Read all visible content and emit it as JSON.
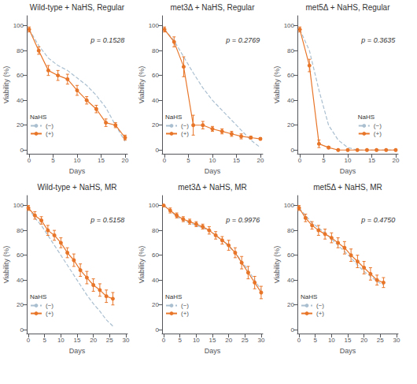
{
  "chart_data": [
    {
      "type": "line",
      "title": "Wild-type + NaHS, Regular",
      "xlabel": "Days",
      "ylabel": "Viability (%)",
      "x": [
        0,
        2,
        4,
        6,
        8,
        10,
        12,
        14,
        16,
        18,
        20
      ],
      "xlim": [
        -0.5,
        20.5
      ],
      "xticks": [
        0,
        5,
        10,
        15,
        20
      ],
      "ylim": [
        -3,
        108
      ],
      "yticks": [
        0,
        20,
        40,
        60,
        80,
        100
      ],
      "series": [
        {
          "name": "(−)",
          "color": "#AABFD0",
          "line_style": "dashed",
          "marker": "none",
          "values": [
            97,
            84,
            74,
            68,
            64,
            58,
            52,
            44,
            34,
            20,
            7
          ]
        },
        {
          "name": "(+)",
          "color": "#E8762A",
          "line_style": "solid",
          "marker": "circle",
          "values": [
            97,
            80,
            64,
            60,
            57,
            48,
            40,
            33,
            22,
            20,
            10
          ],
          "error": [
            2,
            3,
            4,
            4,
            4,
            4,
            3,
            3,
            3,
            2,
            2
          ]
        }
      ],
      "annotations": [
        "p = 0.1528"
      ],
      "legend": "lower left",
      "legend_title": "NaHS",
      "grid": false
    },
    {
      "type": "line",
      "title": "met3Δ + NaHS, Regular",
      "xlabel": "Days",
      "ylabel": "Viability (%)",
      "x": [
        0,
        2,
        4,
        6,
        8,
        10,
        12,
        14,
        16,
        18,
        20
      ],
      "xlim": [
        -0.5,
        20.5
      ],
      "xticks": [
        0,
        5,
        10,
        15,
        20
      ],
      "ylim": [
        -3,
        108
      ],
      "yticks": [
        0,
        20,
        40,
        60,
        80,
        100
      ],
      "series": [
        {
          "name": "(−)",
          "color": "#AABFD0",
          "line_style": "dashed",
          "marker": "none",
          "values": [
            97,
            88,
            75,
            62,
            50,
            40,
            32,
            24,
            16,
            8,
            2
          ]
        },
        {
          "name": "(+)",
          "color": "#E8762A",
          "line_style": "solid",
          "marker": "circle",
          "values": [
            97,
            87,
            67,
            20,
            20,
            17,
            15,
            13,
            11,
            10,
            9
          ],
          "error": [
            2,
            4,
            8,
            8,
            3,
            2,
            2,
            2,
            2,
            1,
            1
          ]
        }
      ],
      "annotations": [
        "p = 0.2769"
      ],
      "legend": "lower left",
      "legend_title": "NaHS",
      "grid": false
    },
    {
      "type": "line",
      "title": "met5Δ + NaHS, Regular",
      "xlabel": "Days",
      "ylabel": "Viability (%)",
      "x": [
        0,
        2,
        4,
        6,
        8,
        10,
        12,
        14,
        16,
        18,
        20
      ],
      "xlim": [
        -0.5,
        20.5
      ],
      "xticks": [
        0,
        5,
        10,
        15,
        20
      ],
      "ylim": [
        -3,
        108
      ],
      "yticks": [
        0,
        20,
        40,
        60,
        80,
        100
      ],
      "series": [
        {
          "name": "(−)",
          "color": "#AABFD0",
          "line_style": "dashed",
          "marker": "none",
          "values": [
            97,
            80,
            48,
            20,
            8,
            2,
            0,
            0,
            0,
            0,
            0
          ]
        },
        {
          "name": "(+)",
          "color": "#E8762A",
          "line_style": "solid",
          "marker": "circle",
          "values": [
            97,
            68,
            5,
            2,
            0,
            0,
            0,
            0,
            0,
            0,
            0
          ],
          "error": [
            2,
            5,
            3,
            1,
            0,
            0,
            0,
            0,
            0,
            0,
            0
          ]
        }
      ],
      "annotations": [
        "p = 0.3635"
      ],
      "legend": "lower right",
      "legend_title": "NaHS",
      "grid": false
    },
    {
      "type": "line",
      "title": "Wild-type + NaHS, MR",
      "xlabel": "Days",
      "ylabel": "Viability (%)",
      "x": [
        0,
        2,
        4,
        6,
        8,
        10,
        12,
        14,
        16,
        18,
        20,
        22,
        24,
        26
      ],
      "xlim": [
        -0.5,
        30.5
      ],
      "xticks": [
        0,
        5,
        10,
        15,
        20,
        25,
        30
      ],
      "ylim": [
        -3,
        108
      ],
      "yticks": [
        0,
        20,
        40,
        60,
        80,
        100
      ],
      "series": [
        {
          "name": "(−)",
          "color": "#AABFD0",
          "line_style": "dashed",
          "marker": "none",
          "values": [
            98,
            90,
            84,
            76,
            68,
            60,
            52,
            44,
            36,
            28,
            21,
            15,
            8,
            3
          ]
        },
        {
          "name": "(+)",
          "color": "#E8762A",
          "line_style": "solid",
          "marker": "circle",
          "values": [
            98,
            92,
            88,
            80,
            76,
            70,
            62,
            56,
            48,
            42,
            36,
            32,
            27,
            25
          ],
          "error": [
            2,
            3,
            3,
            4,
            4,
            4,
            4,
            5,
            5,
            5,
            5,
            5,
            5,
            5
          ]
        }
      ],
      "annotations": [
        "p = 0.5158"
      ],
      "legend": "lower left",
      "legend_title": "NaHS",
      "grid": false
    },
    {
      "type": "line",
      "title": "met3Δ + NaHS, MR",
      "xlabel": "Days",
      "ylabel": "Viability (%)",
      "x": [
        0,
        2,
        4,
        6,
        8,
        10,
        12,
        14,
        16,
        18,
        20,
        22,
        24,
        26,
        28,
        30
      ],
      "xlim": [
        -0.5,
        30.5
      ],
      "xticks": [
        0,
        5,
        10,
        15,
        20,
        25,
        30
      ],
      "ylim": [
        -3,
        108
      ],
      "yticks": [
        0,
        20,
        40,
        60,
        80,
        100
      ],
      "series": [
        {
          "name": "(−)",
          "color": "#AABFD0",
          "line_style": "dashed",
          "marker": "none",
          "values": [
            100,
            96,
            91,
            88,
            86,
            84,
            82,
            80,
            76,
            72,
            67,
            62,
            55,
            48,
            40,
            32
          ]
        },
        {
          "name": "(+)",
          "color": "#E8762A",
          "line_style": "solid",
          "marker": "circle",
          "values": [
            100,
            96,
            92,
            89,
            87,
            85,
            83,
            80,
            76,
            72,
            68,
            62,
            54,
            46,
            38,
            30
          ],
          "error": [
            0,
            2,
            2,
            2,
            2,
            2,
            2,
            3,
            3,
            3,
            4,
            4,
            5,
            5,
            5,
            5
          ]
        }
      ],
      "annotations": [
        "p = 0.9976"
      ],
      "legend": "lower left",
      "legend_title": "NaHS",
      "grid": false
    },
    {
      "type": "line",
      "title": "met5Δ + NaHS, MR",
      "xlabel": "Days",
      "ylabel": "Viability (%)",
      "x": [
        0,
        2,
        4,
        6,
        8,
        10,
        12,
        14,
        16,
        18,
        20,
        22,
        24,
        26
      ],
      "xlim": [
        -0.5,
        30.5
      ],
      "xticks": [
        0,
        5,
        10,
        15,
        20,
        25,
        30
      ],
      "ylim": [
        -3,
        108
      ],
      "yticks": [
        0,
        20,
        40,
        60,
        80,
        100
      ],
      "series": [
        {
          "name": "(−)",
          "color": "#AABFD0",
          "line_style": "dashed",
          "marker": "none",
          "values": [
            98,
            92,
            86,
            82,
            78,
            73,
            68,
            63,
            58,
            52,
            47,
            43,
            39,
            36
          ]
        },
        {
          "name": "(+)",
          "color": "#E8762A",
          "line_style": "solid",
          "marker": "circle",
          "values": [
            98,
            90,
            84,
            80,
            77,
            74,
            70,
            66,
            60,
            55,
            50,
            45,
            40,
            38
          ],
          "error": [
            2,
            3,
            3,
            4,
            4,
            4,
            4,
            5,
            5,
            5,
            5,
            5,
            4,
            4
          ]
        }
      ],
      "annotations": [
        "p = 0.4750"
      ],
      "legend": "lower left",
      "legend_title": "NaHS",
      "grid": false
    }
  ]
}
